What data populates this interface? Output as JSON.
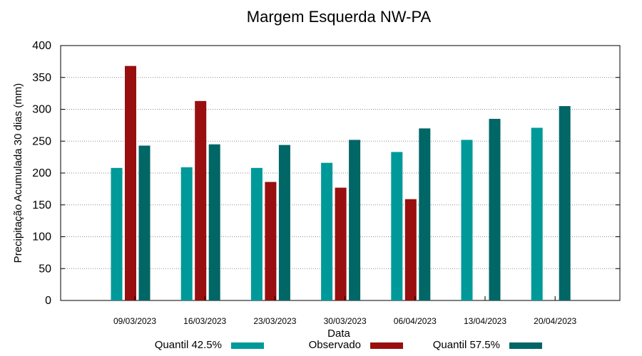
{
  "chart_data": {
    "type": "bar",
    "title": "Margem Esquerda NW-PA",
    "xlabel": "Data",
    "ylabel": "Precipitação Acumulada 30 dias (mm)",
    "ylim": [
      0,
      400
    ],
    "yticks": [
      0,
      50,
      100,
      150,
      200,
      250,
      300,
      350,
      400
    ],
    "grid": true,
    "legend_position": "bottom",
    "categories": [
      "09/03/2023",
      "16/03/2023",
      "23/03/2023",
      "30/03/2023",
      "06/04/2023",
      "13/04/2023",
      "20/04/2023"
    ],
    "series": [
      {
        "name": "Quantil 42.5%",
        "color": "#009999",
        "values": [
          208,
          209,
          208,
          216,
          233,
          252,
          271
        ]
      },
      {
        "name": "Observado",
        "color": "#990f0f",
        "values": [
          368,
          313,
          186,
          177,
          159,
          null,
          null
        ]
      },
      {
        "name": "Quantil 57.5%",
        "color": "#006666",
        "values": [
          243,
          245,
          244,
          252,
          270,
          285,
          305
        ]
      }
    ]
  }
}
